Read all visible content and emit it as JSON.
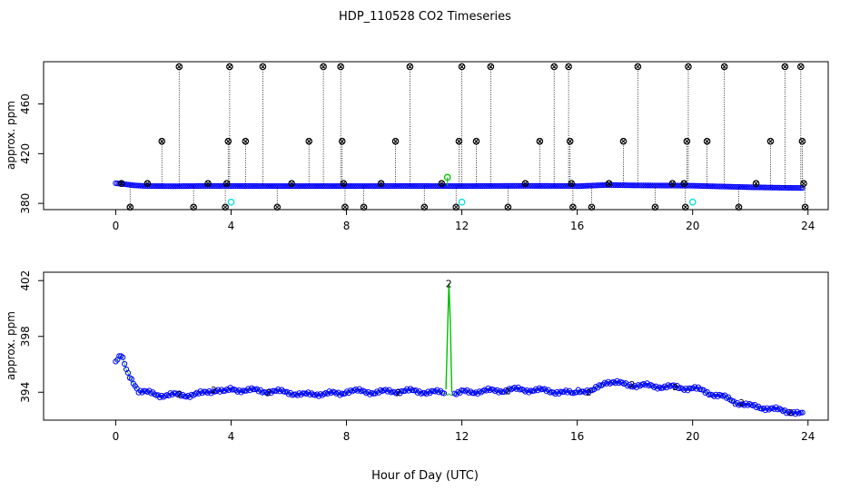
{
  "chart_data": [
    {
      "type": "scatter",
      "title": "HDP_110528  CO2 Timeseries",
      "ylabel": "approx. ppm",
      "xlabel": "",
      "xlim": [
        -2.5,
        24.7
      ],
      "ylim": [
        375,
        494
      ],
      "xticks": [
        0,
        4,
        8,
        12,
        16,
        20,
        24
      ],
      "yticks": [
        380,
        420,
        460
      ],
      "grid": false,
      "series": [
        {
          "color": "#0000ff",
          "baseline": [
            {
              "x": 0.0,
              "y": 396.2
            },
            {
              "x": 0.3,
              "y": 395.5
            },
            {
              "x": 0.6,
              "y": 394.6
            },
            {
              "x": 1.0,
              "y": 394.0
            },
            {
              "x": 2.0,
              "y": 393.8
            },
            {
              "x": 3.0,
              "y": 394.0
            },
            {
              "x": 4.0,
              "y": 394.0
            },
            {
              "x": 6.0,
              "y": 393.9
            },
            {
              "x": 8.0,
              "y": 393.9
            },
            {
              "x": 10.0,
              "y": 394.0
            },
            {
              "x": 11.9,
              "y": 393.9
            },
            {
              "x": 12.0,
              "y": 393.9
            },
            {
              "x": 14.0,
              "y": 394.1
            },
            {
              "x": 15.9,
              "y": 394.0
            },
            {
              "x": 16.0,
              "y": 393.8
            },
            {
              "x": 17.0,
              "y": 394.8
            },
            {
              "x": 18.0,
              "y": 394.5
            },
            {
              "x": 20.0,
              "y": 394.2
            },
            {
              "x": 21.0,
              "y": 393.6
            },
            {
              "x": 22.0,
              "y": 393.0
            },
            {
              "x": 23.0,
              "y": 392.6
            },
            {
              "x": 23.8,
              "y": 392.4
            }
          ]
        },
        {
          "color": "#000000",
          "marker": "cross-circle",
          "points": [
            [
              0.2,
              396
            ],
            [
              0.5,
              377
            ],
            [
              1.1,
              396
            ],
            [
              1.6,
              430
            ],
            [
              2.2,
              490
            ],
            [
              2.7,
              377
            ],
            [
              3.2,
              396
            ],
            [
              3.8,
              377
            ],
            [
              3.85,
              396
            ],
            [
              3.9,
              430
            ],
            [
              3.95,
              490
            ],
            [
              4.5,
              430
            ],
            [
              5.1,
              490
            ],
            [
              5.6,
              377
            ],
            [
              6.1,
              396
            ],
            [
              6.7,
              430
            ],
            [
              7.2,
              490
            ],
            [
              7.8,
              490
            ],
            [
              7.85,
              430
            ],
            [
              7.9,
              396
            ],
            [
              7.95,
              377
            ],
            [
              8.6,
              377
            ],
            [
              9.2,
              396
            ],
            [
              9.7,
              430
            ],
            [
              10.2,
              490
            ],
            [
              10.7,
              377
            ],
            [
              11.3,
              396
            ],
            [
              11.8,
              377
            ],
            [
              11.9,
              430
            ],
            [
              12.0,
              490
            ],
            [
              12.5,
              430
            ],
            [
              13.0,
              490
            ],
            [
              13.6,
              377
            ],
            [
              14.2,
              396
            ],
            [
              14.7,
              430
            ],
            [
              15.2,
              490
            ],
            [
              15.7,
              490
            ],
            [
              15.75,
              430
            ],
            [
              15.8,
              396
            ],
            [
              15.85,
              377
            ],
            [
              16.5,
              377
            ],
            [
              17.1,
              396
            ],
            [
              17.6,
              430
            ],
            [
              18.1,
              490
            ],
            [
              18.7,
              377
            ],
            [
              19.3,
              396
            ],
            [
              19.8,
              430
            ],
            [
              19.85,
              490
            ],
            [
              19.75,
              377
            ],
            [
              19.7,
              396
            ],
            [
              20.5,
              430
            ],
            [
              21.1,
              490
            ],
            [
              21.6,
              377
            ],
            [
              22.2,
              396
            ],
            [
              22.7,
              430
            ],
            [
              23.2,
              490
            ],
            [
              23.75,
              490
            ],
            [
              23.8,
              430
            ],
            [
              23.85,
              396
            ],
            [
              23.9,
              377
            ]
          ]
        },
        {
          "color": "#00c000",
          "marker": "circle",
          "points": [
            [
              11.5,
              401
            ]
          ]
        },
        {
          "color": "#00e0e0",
          "marker": "circle",
          "points": [
            [
              4.0,
              381
            ],
            [
              12.0,
              381
            ],
            [
              20.0,
              381
            ]
          ]
        }
      ]
    },
    {
      "type": "line",
      "title": "",
      "ylabel": "approx. ppm",
      "xlabel": "Hour of Day (UTC)",
      "xlim": [
        -2.5,
        24.7
      ],
      "ylim": [
        392.0,
        402.6
      ],
      "xticks": [
        0,
        4,
        8,
        12,
        16,
        20,
        24
      ],
      "yticks": [
        394,
        398,
        402
      ],
      "grid": false,
      "series": [
        {
          "color": "#0000ff",
          "marker": "circle",
          "points": [
            {
              "x": 0.0,
              "y": 396.2
            },
            {
              "x": 0.2,
              "y": 396.6
            },
            {
              "x": 0.4,
              "y": 395.4
            },
            {
              "x": 0.6,
              "y": 394.8
            },
            {
              "x": 0.8,
              "y": 394.1
            },
            {
              "x": 1.0,
              "y": 394.0
            },
            {
              "x": 1.5,
              "y": 393.8
            },
            {
              "x": 2.0,
              "y": 393.8
            },
            {
              "x": 2.5,
              "y": 393.8
            },
            {
              "x": 3.0,
              "y": 393.9
            },
            {
              "x": 3.5,
              "y": 394.2
            },
            {
              "x": 3.8,
              "y": 394.0
            },
            {
              "x": 4.0,
              "y": 394.2
            },
            {
              "x": 5.0,
              "y": 394.1
            },
            {
              "x": 6.0,
              "y": 394.0
            },
            {
              "x": 6.5,
              "y": 393.8
            },
            {
              "x": 7.0,
              "y": 393.9
            },
            {
              "x": 7.8,
              "y": 393.9
            },
            {
              "x": 8.0,
              "y": 394.1
            },
            {
              "x": 9.0,
              "y": 394.0
            },
            {
              "x": 10.0,
              "y": 394.1
            },
            {
              "x": 11.0,
              "y": 394.0
            },
            {
              "x": 11.9,
              "y": 393.9
            },
            {
              "x": 12.0,
              "y": 394.0
            },
            {
              "x": 13.0,
              "y": 394.1
            },
            {
              "x": 14.0,
              "y": 394.2
            },
            {
              "x": 15.0,
              "y": 394.1
            },
            {
              "x": 15.9,
              "y": 393.9
            },
            {
              "x": 16.0,
              "y": 394.2
            },
            {
              "x": 16.5,
              "y": 394.0
            },
            {
              "x": 17.0,
              "y": 394.8
            },
            {
              "x": 17.5,
              "y": 394.6
            },
            {
              "x": 18.0,
              "y": 394.5
            },
            {
              "x": 19.0,
              "y": 394.4
            },
            {
              "x": 19.8,
              "y": 394.3
            },
            {
              "x": 20.0,
              "y": 394.3
            },
            {
              "x": 20.5,
              "y": 394.0
            },
            {
              "x": 21.0,
              "y": 393.7
            },
            {
              "x": 21.5,
              "y": 393.3
            },
            {
              "x": 22.0,
              "y": 393.0
            },
            {
              "x": 22.5,
              "y": 392.9
            },
            {
              "x": 23.0,
              "y": 392.7
            },
            {
              "x": 23.5,
              "y": 392.6
            },
            {
              "x": 23.8,
              "y": 392.4
            }
          ]
        },
        {
          "color": "#00c000",
          "marker": "text",
          "marker_text": "2",
          "points": [
            {
              "x": 11.45,
              "y": 394.2
            },
            {
              "x": 11.5,
              "y": 398.0
            },
            {
              "x": 11.55,
              "y": 401.8
            },
            {
              "x": 11.6,
              "y": 399.0
            },
            {
              "x": 11.65,
              "y": 394.0
            }
          ]
        }
      ]
    }
  ]
}
